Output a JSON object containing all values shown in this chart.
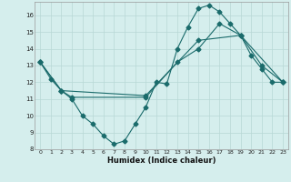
{
  "xlabel": "Humidex (Indice chaleur)",
  "background_color": "#d5eeed",
  "grid_color": "#b8d8d6",
  "line_color": "#1a6b6b",
  "xlim": [
    -0.5,
    23.5
  ],
  "ylim": [
    8,
    16.8
  ],
  "yticks": [
    8,
    9,
    10,
    11,
    12,
    13,
    14,
    15,
    16
  ],
  "xticks": [
    0,
    1,
    2,
    3,
    4,
    5,
    6,
    7,
    8,
    9,
    10,
    11,
    12,
    13,
    14,
    15,
    16,
    17,
    18,
    19,
    20,
    21,
    22,
    23
  ],
  "line1_x": [
    0,
    1,
    2,
    3,
    4,
    5,
    6,
    7,
    8,
    9,
    10,
    11,
    12,
    13,
    14,
    15,
    16,
    17,
    18,
    19,
    20,
    21,
    22,
    23
  ],
  "line1_y": [
    13.2,
    12.2,
    11.5,
    11.0,
    10.0,
    9.5,
    8.8,
    8.3,
    8.5,
    9.5,
    10.5,
    12.0,
    11.9,
    14.0,
    15.3,
    16.4,
    16.6,
    16.2,
    15.5,
    14.8,
    13.6,
    12.8,
    12.0,
    12.0
  ],
  "line2_x": [
    0,
    2,
    3,
    10,
    13,
    15,
    17,
    19,
    21,
    23
  ],
  "line2_y": [
    13.2,
    11.5,
    11.1,
    11.1,
    13.2,
    14.0,
    15.5,
    14.8,
    13.0,
    12.0
  ],
  "line3_x": [
    0,
    2,
    10,
    15,
    19,
    23
  ],
  "line3_y": [
    13.2,
    11.5,
    11.2,
    14.5,
    14.8,
    12.0
  ]
}
